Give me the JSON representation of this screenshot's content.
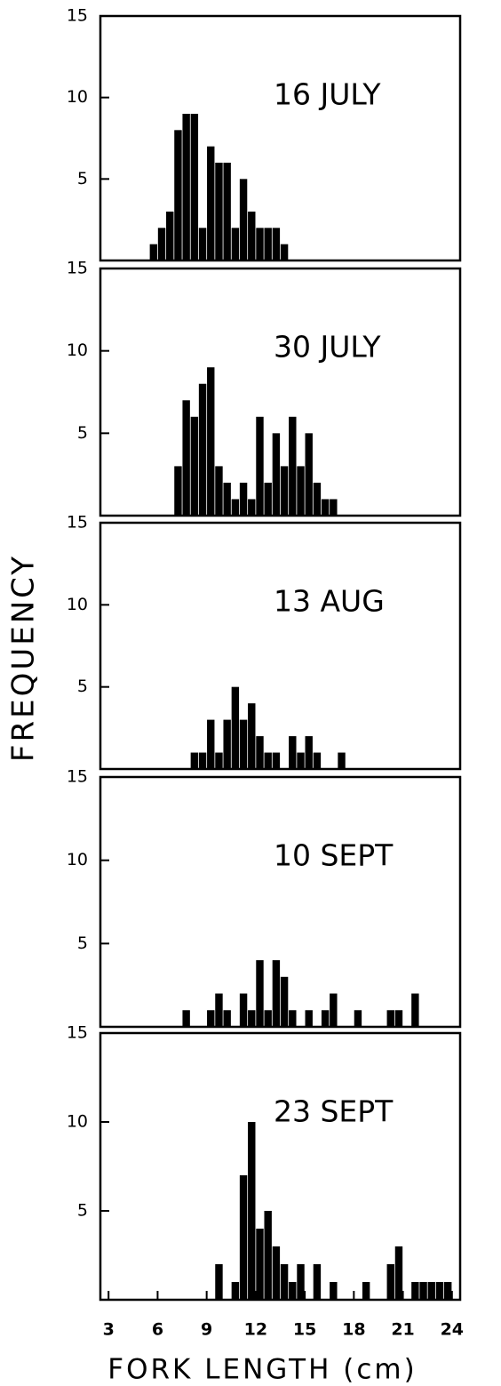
{
  "chart_data": [
    {
      "type": "histogram",
      "title": "16 JULY",
      "bins": [
        5.5,
        6,
        6.5,
        7,
        7.5,
        8,
        8.5,
        9,
        9.5,
        10,
        10.5,
        11,
        11.5,
        12,
        12.5,
        13,
        13.5,
        14
      ],
      "values": [
        1,
        2,
        3,
        8,
        9,
        9,
        2,
        7,
        6,
        6,
        2,
        5,
        3,
        2,
        2,
        2,
        1
      ],
      "color": "#000000",
      "xlim": [
        2.5,
        24.5
      ],
      "ylim": [
        0,
        15
      ],
      "yticks": [
        5,
        10,
        15
      ]
    },
    {
      "type": "histogram",
      "title": "30 JULY",
      "bins": [
        7,
        7.5,
        8,
        8.5,
        9,
        9.5,
        10,
        10.5,
        11,
        11.5,
        12,
        12.5,
        13,
        13.5,
        14,
        14.5,
        15,
        15.5,
        16,
        16.5,
        17
      ],
      "values": [
        3,
        7,
        6,
        8,
        9,
        3,
        2,
        1,
        2,
        1,
        6,
        2,
        5,
        3,
        6,
        3,
        5,
        2,
        1,
        1
      ],
      "color": "#000000",
      "xlim": [
        2.5,
        24.5
      ],
      "ylim": [
        0,
        15
      ],
      "yticks": [
        5,
        10,
        15
      ]
    },
    {
      "type": "histogram",
      "title": "13 AUG",
      "ylabel": "FREQUENCY",
      "bins": [
        8,
        8.5,
        9,
        9.5,
        10,
        10.5,
        11,
        11.5,
        12,
        12.5,
        13,
        13.5,
        14,
        14.5,
        15,
        15.5,
        16,
        16.5,
        17,
        17.5
      ],
      "values": [
        1,
        1,
        3,
        1,
        3,
        5,
        3,
        4,
        2,
        1,
        1,
        0,
        2,
        1,
        2,
        1,
        0,
        0,
        1
      ],
      "color": "#000000",
      "xlim": [
        2.5,
        24.5
      ],
      "ylim": [
        0,
        15
      ],
      "yticks": [
        5,
        10,
        15
      ]
    },
    {
      "type": "histogram",
      "title": "10 SEPT",
      "bins": [
        7.5,
        8,
        8.5,
        9,
        9.5,
        10,
        10.5,
        11,
        11.5,
        12,
        12.5,
        13,
        13.5,
        14,
        14.5,
        15,
        15.5,
        16,
        16.5,
        17,
        17.5,
        18,
        18.5,
        19,
        19.5,
        20,
        20.5,
        21,
        21.5,
        22
      ],
      "values": [
        1,
        0,
        0,
        1,
        2,
        1,
        0,
        2,
        1,
        4,
        1,
        4,
        3,
        1,
        0,
        1,
        0,
        1,
        2,
        0,
        0,
        1,
        0,
        0,
        0,
        1,
        1,
        0,
        2
      ],
      "color": "#000000",
      "xlim": [
        2.5,
        24.5
      ],
      "ylim": [
        0,
        15
      ],
      "yticks": [
        5,
        10,
        15
      ]
    },
    {
      "type": "histogram",
      "title": "23 SEPT",
      "xlabel": "FORK  LENGTH  (cm)",
      "bins": [
        9.5,
        10,
        10.5,
        11,
        11.5,
        12,
        12.5,
        13,
        13.5,
        14,
        14.5,
        15,
        15.5,
        16,
        16.5,
        17,
        17.5,
        18,
        18.5,
        19,
        19.5,
        20,
        20.5,
        21,
        21.5,
        22,
        22.5,
        23,
        23.5,
        24
      ],
      "values": [
        2,
        0,
        1,
        7,
        10,
        4,
        5,
        3,
        2,
        1,
        2,
        0,
        2,
        0,
        1,
        0,
        0,
        0,
        1,
        0,
        0,
        2,
        3,
        0,
        1,
        1,
        1,
        1,
        1
      ],
      "color": "#000000",
      "xlim": [
        2.5,
        24.5
      ],
      "ylim": [
        0,
        15
      ],
      "yticks": [
        5,
        10,
        15
      ],
      "xticks": [
        3,
        6,
        9,
        12,
        15,
        18,
        21,
        24
      ]
    }
  ]
}
